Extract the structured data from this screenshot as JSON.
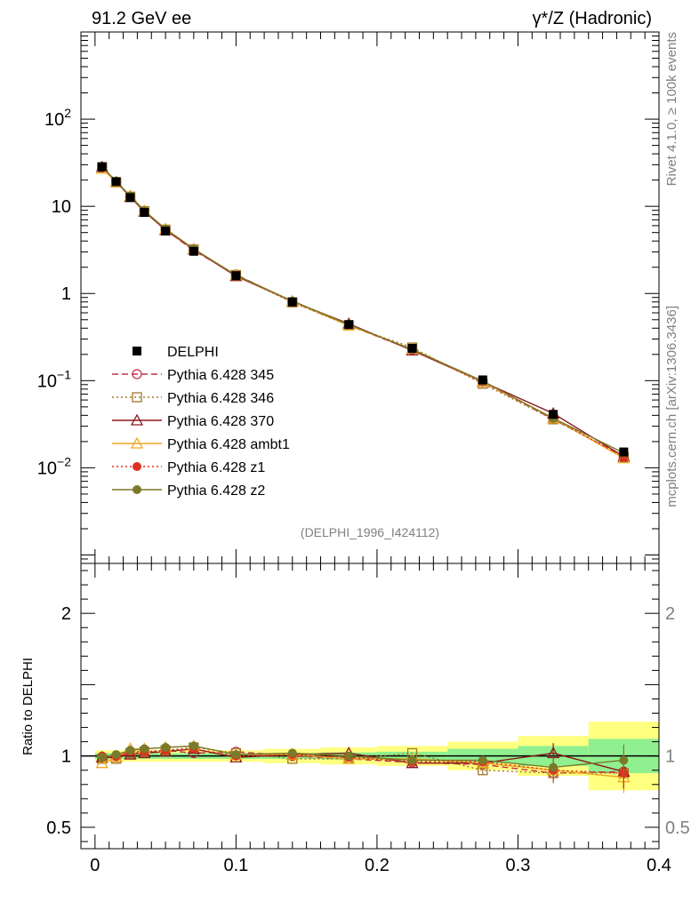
{
  "header": {
    "left_title": "91.2 GeV ee",
    "right_title": "γ*/Z (Hadronic)"
  },
  "side_labels": {
    "rivet": "Rivet 4.1.0, ≥ 100k events",
    "mcplots": "mcplots.cern.ch [arXiv:1306.3436]"
  },
  "watermark": "(DELPHI_1996_I424112)",
  "ratio_ylabel": "Ratio to DELPHI",
  "colors": {
    "data": "#000000",
    "p345": "#c0304a",
    "p346": "#a0782a",
    "p370": "#8b1a1a",
    "ambt1": "#f0a820",
    "z1": "#e03020",
    "z2": "#7a7a2a",
    "band_green": "#90f090",
    "band_yellow": "#ffff80"
  },
  "chart_data": [
    {
      "type": "line",
      "yscale": "log",
      "xlim": [
        -0.01,
        0.4
      ],
      "ylim": [
        0.0008,
        1000
      ],
      "ytick_labels": [
        "10^-2",
        "10^-1",
        "1",
        "10",
        "10^2"
      ],
      "ytick_values": [
        0.01,
        0.1,
        1,
        10,
        100
      ],
      "legend": [
        "DELPHI",
        "Pythia 6.428 345",
        "Pythia 6.428 346",
        "Pythia 6.428 370",
        "Pythia 6.428 ambt1",
        "Pythia 6.428 z1",
        "Pythia 6.428 z2"
      ],
      "x": [
        0.005,
        0.015,
        0.025,
        0.035,
        0.05,
        0.07,
        0.1,
        0.14,
        0.18,
        0.225,
        0.275,
        0.325,
        0.375
      ],
      "data": [
        28.5,
        19.2,
        12.6,
        8.5,
        5.2,
        3.05,
        1.6,
        0.8,
        0.44,
        0.235,
        0.102,
        0.041,
        0.0152
      ],
      "series": [
        {
          "name": "Pythia 6.428 345",
          "values": [
            28.3,
            19.1,
            12.9,
            8.7,
            5.4,
            3.1,
            1.65,
            0.8,
            0.43,
            0.225,
            0.096,
            0.036,
            0.0135
          ]
        },
        {
          "name": "Pythia 6.428 346",
          "values": [
            28.0,
            18.8,
            12.9,
            8.8,
            5.4,
            3.2,
            1.63,
            0.79,
            0.43,
            0.24,
            0.092,
            0.036,
            0.0133
          ]
        },
        {
          "name": "Pythia 6.428 370",
          "values": [
            28.2,
            19.0,
            12.8,
            8.7,
            5.35,
            3.2,
            1.58,
            0.81,
            0.45,
            0.222,
            0.097,
            0.042,
            0.0135
          ]
        },
        {
          "name": "Pythia 6.428 ambt1",
          "values": [
            27.0,
            19.0,
            13.2,
            8.9,
            5.5,
            3.25,
            1.62,
            0.81,
            0.43,
            0.23,
            0.097,
            0.037,
            0.0129
          ]
        },
        {
          "name": "Pythia 6.428 z1",
          "values": [
            28.6,
            19.3,
            13.0,
            8.8,
            5.4,
            3.2,
            1.6,
            0.81,
            0.44,
            0.225,
            0.098,
            0.037,
            0.0134
          ]
        },
        {
          "name": "Pythia 6.428 z2",
          "values": [
            28.4,
            19.4,
            13.1,
            8.9,
            5.5,
            3.25,
            1.62,
            0.82,
            0.44,
            0.228,
            0.099,
            0.037,
            0.0148
          ]
        }
      ]
    },
    {
      "type": "line",
      "title": "Ratio to DELPHI",
      "xlim": [
        -0.01,
        0.4
      ],
      "ylim": [
        0.35,
        2.35
      ],
      "xtick_labels": [
        "0",
        "0.1",
        "0.2",
        "0.3",
        "0.4"
      ],
      "xtick_values": [
        0,
        0.1,
        0.2,
        0.3,
        0.4
      ],
      "ytick_labels": [
        "0.5",
        "1",
        "2"
      ],
      "ytick_values": [
        0.5,
        1,
        2
      ],
      "x": [
        0.005,
        0.015,
        0.025,
        0.035,
        0.05,
        0.07,
        0.1,
        0.14,
        0.18,
        0.225,
        0.275,
        0.325,
        0.375
      ],
      "bins": [
        [
          0,
          0.01
        ],
        [
          0.01,
          0.02
        ],
        [
          0.02,
          0.03
        ],
        [
          0.03,
          0.04
        ],
        [
          0.04,
          0.06
        ],
        [
          0.06,
          0.08
        ],
        [
          0.08,
          0.12
        ],
        [
          0.12,
          0.16
        ],
        [
          0.16,
          0.2
        ],
        [
          0.2,
          0.25
        ],
        [
          0.25,
          0.3
        ],
        [
          0.3,
          0.35
        ],
        [
          0.35,
          0.4
        ]
      ],
      "band_stat": [
        0.02,
        0.02,
        0.02,
        0.02,
        0.02,
        0.02,
        0.02,
        0.02,
        0.025,
        0.03,
        0.05,
        0.07,
        0.12
      ],
      "band_total": [
        0.04,
        0.04,
        0.04,
        0.04,
        0.04,
        0.04,
        0.04,
        0.05,
        0.06,
        0.07,
        0.1,
        0.14,
        0.24
      ],
      "series": [
        {
          "name": "Pythia 6.428 345",
          "values": [
            0.99,
            1.0,
            1.02,
            1.02,
            1.04,
            1.02,
            1.03,
            1.0,
            0.98,
            0.955,
            0.94,
            0.88,
            0.89
          ]
        },
        {
          "name": "Pythia 6.428 346",
          "values": [
            0.98,
            0.98,
            1.02,
            1.03,
            1.04,
            1.06,
            1.02,
            0.98,
            0.98,
            1.02,
            0.9,
            0.88,
            0.88
          ]
        },
        {
          "name": "Pythia 6.428 370",
          "values": [
            0.99,
            0.99,
            1.01,
            1.02,
            1.03,
            1.05,
            0.99,
            1.01,
            1.02,
            0.95,
            0.95,
            1.02,
            0.89
          ]
        },
        {
          "name": "Pythia 6.428 ambt1",
          "values": [
            0.95,
            0.99,
            1.05,
            1.05,
            1.06,
            1.07,
            1.01,
            1.01,
            0.98,
            0.98,
            0.95,
            0.9,
            0.85
          ]
        },
        {
          "name": "Pythia 6.428 z1",
          "values": [
            1.0,
            1.0,
            1.03,
            1.03,
            1.04,
            1.05,
            1.0,
            1.01,
            0.99,
            0.96,
            0.96,
            0.9,
            0.88
          ]
        },
        {
          "name": "Pythia 6.428 z2",
          "values": [
            0.99,
            1.01,
            1.04,
            1.05,
            1.06,
            1.07,
            1.01,
            1.02,
            1.0,
            0.97,
            0.97,
            0.92,
            0.97
          ]
        }
      ]
    }
  ]
}
